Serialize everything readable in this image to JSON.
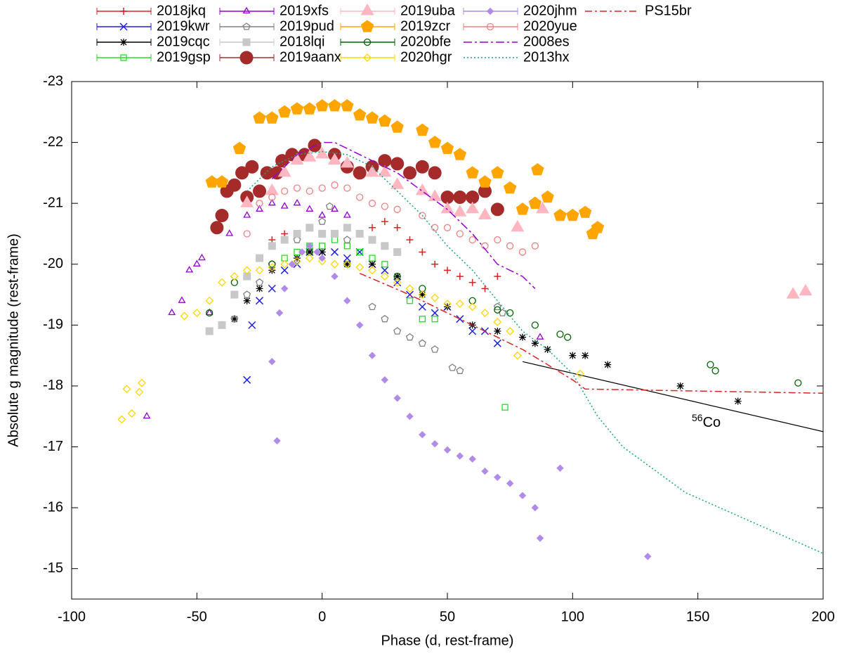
{
  "chart_data": {
    "type": "scatter",
    "xlabel": "Phase (d, rest-frame)",
    "ylabel": "Absolute g magnitude (rest-frame)",
    "xlim": [
      -100,
      200
    ],
    "xticks": [
      -100,
      -50,
      0,
      50,
      100,
      150,
      200
    ],
    "ylim": [
      -14.5,
      -23
    ],
    "yticks": [
      -23,
      -22,
      -21,
      -20,
      -19,
      -18,
      -17,
      -16,
      -15
    ],
    "series": [
      {
        "name": "2018jkq",
        "color": "#e02020",
        "marker": "plus",
        "x": [
          -20,
          -15,
          -10,
          -5,
          0,
          5,
          10,
          15,
          20,
          25,
          30,
          35,
          40,
          45,
          50,
          55,
          60,
          65,
          70
        ],
        "values": [
          -20.4,
          -20.5,
          -20.5,
          -20.6,
          -20.5,
          -20.5,
          -20.6,
          -20.5,
          -20.6,
          -20.7,
          -20.6,
          -20.4,
          -20.2,
          -20.0,
          -19.9,
          -19.8,
          -19.7,
          -19.6,
          -19.8
        ]
      },
      {
        "name": "2019kwr",
        "color": "#2020e0",
        "marker": "x",
        "x": [
          -30,
          -28,
          -25,
          -20,
          -15,
          -10,
          -5,
          0,
          5,
          10,
          15,
          20,
          25,
          30,
          35,
          40,
          45,
          50,
          55,
          60,
          65,
          70
        ],
        "values": [
          -18.1,
          -19,
          -19.4,
          -19.6,
          -19.9,
          -20.0,
          -20.2,
          -20.2,
          -20.2,
          -20.1,
          -20.2,
          -20.0,
          -19.9,
          -19.7,
          -19.5,
          -19.3,
          -19.2,
          -19.3,
          -19.1,
          -18.9,
          -18.9,
          -18.7
        ]
      },
      {
        "name": "2019cqc",
        "color": "#000000",
        "marker": "star",
        "x": [
          -35,
          -30,
          -25,
          -20,
          -10,
          -5,
          0,
          10,
          20,
          30,
          40,
          50,
          60,
          70,
          80,
          85,
          90,
          100,
          105,
          114,
          143,
          166
        ],
        "values": [
          -19.1,
          -19.4,
          -19.6,
          -19.9,
          -20.1,
          -20.2,
          -20.2,
          -20.0,
          -20.0,
          -19.8,
          -19.5,
          -19.3,
          -19.0,
          -18.9,
          -18.8,
          -18.7,
          -18.6,
          -18.5,
          -18.5,
          -18.35,
          -18.0,
          -17.75
        ]
      },
      {
        "name": "2019gsp",
        "color": "#20e020",
        "marker": "square-open",
        "x": [
          -15,
          -10,
          -5,
          0,
          5,
          10,
          15,
          20,
          25,
          35,
          40,
          45,
          73
        ],
        "values": [
          -20.1,
          -20.2,
          -20.3,
          -20.3,
          -20.4,
          -20.3,
          -20.2,
          -20.1,
          -20.0,
          -19.4,
          -19.1,
          -19.1,
          -17.65
        ]
      },
      {
        "name": "2019xfs",
        "color": "#9400d3",
        "marker": "triangle-open",
        "x": [
          -70,
          -60,
          -56,
          -53,
          -50,
          -48,
          -45,
          -37,
          -30,
          -25,
          -20,
          -15,
          -10,
          -5,
          0,
          5,
          10,
          87
        ],
        "values": [
          -17.5,
          -19.2,
          -19.4,
          -19.9,
          -20.0,
          -20.1,
          -19.2,
          -20.5,
          -20.8,
          -20.9,
          -21.0,
          -20.95,
          -21.0,
          -20.9,
          -20.8,
          -20.9,
          -20.8,
          -18.8
        ]
      },
      {
        "name": "2019pud",
        "color": "#808080",
        "marker": "pentagon-open",
        "x": [
          -40,
          -35,
          -30,
          -25,
          -20,
          -10,
          0,
          3,
          10,
          20,
          25,
          30,
          35,
          40,
          45,
          52,
          55,
          70,
          72
        ],
        "values": [
          -19.0,
          -19.1,
          -19.5,
          -19.7,
          -20.0,
          -20.4,
          -20.7,
          -20.95,
          -20.4,
          -19.3,
          -19.1,
          -18.9,
          -18.8,
          -18.7,
          -18.6,
          -18.3,
          -18.25,
          -19.3,
          -19.2
        ]
      },
      {
        "name": "2018lqi",
        "color": "#c8c8c8",
        "marker": "square",
        "x": [
          -45,
          -40,
          -35,
          -30,
          -25,
          -20,
          -15,
          -10,
          -5,
          0,
          5,
          10,
          15,
          20,
          25,
          30
        ],
        "values": [
          -18.9,
          -19.0,
          -19.5,
          -19.8,
          -20.1,
          -20.3,
          -20.4,
          -20.5,
          -20.6,
          -20.5,
          -20.5,
          -20.6,
          -20.5,
          -20.4,
          -20.3,
          -20.2
        ]
      },
      {
        "name": "2019aanx",
        "color": "#a52a2a",
        "marker": "circle-big",
        "x": [
          -42,
          -40,
          -38,
          -35,
          -32,
          -30,
          -28,
          -25,
          -22,
          -18,
          -16,
          -12,
          -7,
          -3,
          5,
          10,
          15,
          20,
          25,
          30,
          35,
          40,
          45,
          50,
          55,
          60,
          65,
          70
        ],
        "values": [
          -20.6,
          -20.8,
          -21.2,
          -21.3,
          -21.5,
          -21.1,
          -21.6,
          -21.2,
          -21.5,
          -21.5,
          -21.7,
          -21.8,
          -21.8,
          -21.95,
          -21.8,
          -21.6,
          -21.5,
          -21.6,
          -21.7,
          -21.65,
          -21.5,
          -21.6,
          -21.5,
          -21.1,
          -21.1,
          -21.1,
          -21.2,
          -20.9
        ]
      },
      {
        "name": "2019uba",
        "color": "#ffb6c1",
        "marker": "triangle",
        "x": [
          -30,
          -20,
          -15,
          -10,
          -5,
          0,
          5,
          10,
          20,
          25,
          30,
          40,
          45,
          50,
          55,
          60,
          65,
          78,
          88,
          188,
          193
        ],
        "values": [
          -21.0,
          -21.2,
          -21.5,
          -21.7,
          -21.75,
          -21.8,
          -21.7,
          -21.65,
          -21.5,
          -21.5,
          -21.3,
          -21.2,
          -21.1,
          -20.9,
          -20.85,
          -20.9,
          -20.8,
          -20.6,
          -20.9,
          -19.5,
          -19.55
        ]
      },
      {
        "name": "2019zcr",
        "color": "#ffa500",
        "marker": "pentagon",
        "x": [
          -44,
          -40,
          -33,
          -25,
          -20,
          -15,
          -10,
          -5,
          0,
          5,
          10,
          15,
          20,
          25,
          30,
          40,
          45,
          50,
          55,
          60,
          65,
          70,
          75,
          80,
          85,
          86,
          90,
          95,
          100,
          105,
          108,
          110
        ],
        "values": [
          -21.35,
          -21.35,
          -21.9,
          -22.4,
          -22.4,
          -22.5,
          -22.55,
          -22.55,
          -22.6,
          -22.6,
          -22.6,
          -22.45,
          -22.4,
          -22.35,
          -22.25,
          -22.2,
          -22.0,
          -21.9,
          -21.8,
          -21.5,
          -21.35,
          -21.5,
          -21.25,
          -20.9,
          -21.0,
          -21.55,
          -21.1,
          -20.8,
          -20.8,
          -20.85,
          -20.5,
          -20.6
        ]
      },
      {
        "name": "2020bfe",
        "color": "#006400",
        "marker": "circle-open",
        "x": [
          -45,
          -35,
          -20,
          -5,
          10,
          30,
          40,
          60,
          70,
          75,
          85,
          95,
          98,
          155,
          157,
          190
        ],
        "values": [
          -19.2,
          -19.7,
          -20.0,
          -20.2,
          -20.0,
          -19.8,
          -19.6,
          -19.4,
          -19.25,
          -19.2,
          -19.0,
          -18.85,
          -18.8,
          -18.35,
          -18.25,
          -18.05
        ]
      },
      {
        "name": "2020hgr",
        "color": "#ffd700",
        "marker": "diamond-open",
        "x": [
          -80,
          -78,
          -76,
          -73,
          -72,
          -55,
          -50,
          -45,
          -40,
          -35,
          -30,
          -25,
          -20,
          -15,
          -10,
          -5,
          0,
          5,
          10,
          15,
          20,
          25,
          30,
          35,
          40,
          45,
          50,
          55,
          60,
          65,
          70,
          75,
          78,
          103
        ],
        "values": [
          -17.45,
          -17.95,
          -17.55,
          -17.9,
          -18.05,
          -19.15,
          -19.2,
          -19.4,
          -19.7,
          -19.8,
          -19.9,
          -19.9,
          -19.95,
          -20.0,
          -20.05,
          -20.1,
          -20.05,
          -20.0,
          -20.0,
          -19.95,
          -19.9,
          -19.8,
          -19.7,
          -19.6,
          -19.5,
          -19.45,
          -19.35,
          -19.35,
          -19.3,
          -19.2,
          -19.05,
          -18.9,
          -18.5,
          -18.2
        ]
      },
      {
        "name": "2020jhm",
        "color": "#b08be8",
        "marker": "diamond",
        "x": [
          -20,
          -18,
          -17,
          -15,
          -12,
          -8,
          -5,
          -2,
          0,
          5,
          10,
          15,
          20,
          25,
          30,
          35,
          40,
          45,
          50,
          55,
          60,
          65,
          70,
          75,
          80,
          85,
          87,
          95,
          130
        ],
        "values": [
          -18.4,
          -17.1,
          -19.2,
          -19.6,
          -20.0,
          -20.2,
          -20.3,
          -20.2,
          -20.1,
          -19.8,
          -19.4,
          -19.0,
          -18.5,
          -18.1,
          -17.8,
          -17.5,
          -17.2,
          -17.05,
          -16.95,
          -16.85,
          -16.8,
          -16.6,
          -16.5,
          -16.4,
          -16.2,
          -16.0,
          -15.5,
          -16.65,
          -15.2
        ]
      },
      {
        "name": "2020yue",
        "color": "#f08080",
        "marker": "circle-open",
        "x": [
          -30,
          -25,
          -20,
          -15,
          -10,
          -5,
          0,
          5,
          10,
          15,
          20,
          25,
          30,
          40,
          45,
          50,
          55,
          60,
          65,
          70,
          75,
          80,
          85
        ],
        "values": [
          -20.5,
          -21.0,
          -21.1,
          -21.2,
          -21.25,
          -21.2,
          -21.25,
          -21.3,
          -21.25,
          -21.1,
          -21.0,
          -20.95,
          -20.9,
          -20.8,
          -20.6,
          -20.6,
          -20.5,
          -20.4,
          -20.3,
          -20.4,
          -20.3,
          -20.2,
          -20.3
        ]
      },
      {
        "name": "2008es",
        "color": "#9400d3",
        "dash": "12,4,3,4",
        "x": [
          -20,
          -10,
          0,
          5,
          10,
          20,
          30,
          40,
          50,
          60,
          70,
          80,
          85
        ],
        "values": [
          -21.4,
          -21.8,
          -22.0,
          -22.0,
          -21.9,
          -21.7,
          -21.5,
          -21.2,
          -20.9,
          -20.5,
          -20.0,
          -19.8,
          -19.6
        ]
      },
      {
        "name": "2013hx",
        "color": "#1aa37a",
        "dash": "2,3",
        "x": [
          -30,
          -20,
          -10,
          0,
          10,
          20,
          30,
          40,
          50,
          60,
          70,
          80,
          90,
          100,
          110,
          120,
          145,
          200
        ],
        "values": [
          -21.2,
          -21.6,
          -21.8,
          -21.85,
          -21.8,
          -21.6,
          -21.2,
          -20.8,
          -20.3,
          -19.9,
          -19.4,
          -18.9,
          -18.6,
          -18.2,
          -17.5,
          -17.0,
          -16.25,
          -15.25
        ]
      },
      {
        "name": "PS15br",
        "color": "#dd2222",
        "dash": "10,4,3,4",
        "x": [
          15,
          32,
          40,
          60,
          80,
          90,
          100,
          105,
          200
        ],
        "values": [
          -19.85,
          -19.55,
          -19.4,
          -19.0,
          -18.6,
          -18.35,
          -18.1,
          -17.95,
          -17.88
        ]
      }
    ],
    "reference_line": {
      "color": "#000000",
      "x": [
        80,
        200
      ],
      "values": [
        -18.4,
        -17.25
      ],
      "annotation": {
        "sup": "56",
        "text": "Co"
      }
    }
  }
}
